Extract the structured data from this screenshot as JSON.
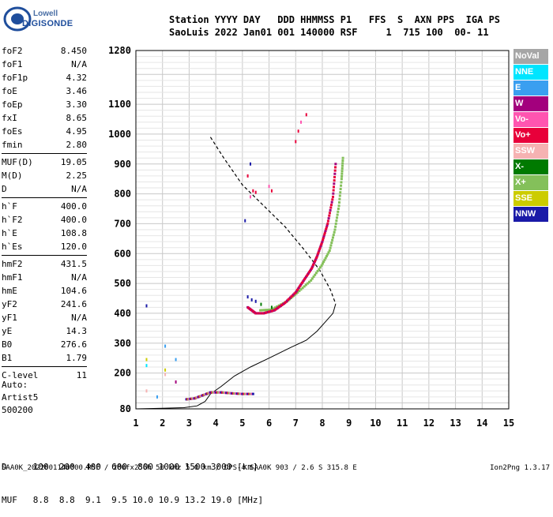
{
  "logo": {
    "line1": "Lowell",
    "line2": "DIGISONDE"
  },
  "header": {
    "line1": "Station YYYY DAY   DDD HHMMSS P1   FFS  S  AXN PPS  IGA PS",
    "line2": "SaoLuis 2022 Jan01 001 140000 RSF     1  715 100  00- 11"
  },
  "params": [
    [
      {
        "n": "foF2",
        "v": "8.450"
      },
      {
        "n": "foF1",
        "v": "N/A"
      },
      {
        "n": "foF1p",
        "v": "4.32"
      },
      {
        "n": "foE",
        "v": "3.46"
      },
      {
        "n": "foEp",
        "v": "3.30"
      },
      {
        "n": "fxI",
        "v": "8.65"
      },
      {
        "n": "foEs",
        "v": "4.95"
      },
      {
        "n": "fmin",
        "v": "2.80"
      }
    ],
    [
      {
        "n": "MUF(D)",
        "v": "19.05"
      },
      {
        "n": "M(D)",
        "v": "2.25"
      },
      {
        "n": "D",
        "v": "N/A"
      }
    ],
    [
      {
        "n": "h`F",
        "v": "400.0"
      },
      {
        "n": "h`F2",
        "v": "400.0"
      },
      {
        "n": "h`E",
        "v": "108.8"
      },
      {
        "n": "h`Es",
        "v": "120.0"
      }
    ],
    [
      {
        "n": "hmF2",
        "v": "431.5"
      },
      {
        "n": "hmF1",
        "v": "N/A"
      },
      {
        "n": "hmE",
        "v": "104.6"
      },
      {
        "n": "yF2",
        "v": "241.6"
      },
      {
        "n": "yF1",
        "v": "N/A"
      },
      {
        "n": "yE",
        "v": "14.3"
      },
      {
        "n": "B0",
        "v": "276.6"
      },
      {
        "n": "B1",
        "v": "1.79"
      }
    ],
    [
      {
        "n": "C-level",
        "v": "11"
      }
    ]
  ],
  "auto": {
    "line1": "Auto:",
    "line2": "Artist5",
    "line3": "500200"
  },
  "legend": [
    {
      "label": "NoVal",
      "color": "#a6a6a6"
    },
    {
      "label": "NNE",
      "color": "#00e5ff"
    },
    {
      "label": "E",
      "color": "#3a9ff0"
    },
    {
      "label": "W",
      "color": "#a3007d"
    },
    {
      "label": "Vo-",
      "color": "#ff55b0"
    },
    {
      "label": "Vo+",
      "color": "#e8003a"
    },
    {
      "label": "SSW",
      "color": "#f6b2b2"
    },
    {
      "label": "X-",
      "color": "#007a00"
    },
    {
      "label": "X+",
      "color": "#84c05a"
    },
    {
      "label": "SSE",
      "color": "#cccc00"
    },
    {
      "label": "NNW",
      "color": "#1a1aa8"
    }
  ],
  "muf_table": {
    "line1": "D     100  200  400  600  800 1000 1500 3000 [km]",
    "line2": "MUF   8.8  8.8  9.1  9.5 10.0 10.9 13.2 19.0 [MHz]"
  },
  "footer": {
    "left": "SAA0K_2022001140000.RSF / 280fx256h 50 kHz 5.0 km / DPS-4 SAA0K 903 / 2.6 S 315.8 E",
    "right": "Ion2Png 1.3.17"
  },
  "chart_data": {
    "type": "scatter",
    "xlim": [
      1,
      15
    ],
    "ylim": [
      80,
      1280
    ],
    "x_ticks": [
      1,
      2,
      3,
      4,
      5,
      6,
      7,
      8,
      9,
      10,
      11,
      12,
      13,
      14,
      15
    ],
    "y_ticks": [
      80,
      200,
      300,
      400,
      500,
      600,
      700,
      800,
      900,
      1000,
      1100,
      1280
    ],
    "grid": true,
    "legend_position": "right",
    "profile_solid": [
      [
        1,
        80
      ],
      [
        2,
        82
      ],
      [
        2.8,
        84
      ],
      [
        3.3,
        90
      ],
      [
        3.6,
        105
      ],
      [
        3.8,
        130
      ],
      [
        4.2,
        155
      ],
      [
        4.7,
        190
      ],
      [
        5.3,
        220
      ],
      [
        6,
        250
      ],
      [
        6.8,
        285
      ],
      [
        7.4,
        310
      ],
      [
        7.8,
        340
      ],
      [
        8.1,
        370
      ],
      [
        8.4,
        400
      ],
      [
        8.5,
        431.5
      ]
    ],
    "profile_dashed": [
      [
        3.8,
        990
      ],
      [
        4.3,
        920
      ],
      [
        5,
        830
      ],
      [
        5.8,
        760
      ],
      [
        6.6,
        690
      ],
      [
        7.3,
        615
      ],
      [
        7.9,
        545
      ],
      [
        8.3,
        480
      ],
      [
        8.5,
        431.5
      ]
    ],
    "o_trace": [
      [
        5.2,
        420
      ],
      [
        5.5,
        400
      ],
      [
        5.8,
        400
      ],
      [
        6.2,
        410
      ],
      [
        6.6,
        435
      ],
      [
        7,
        470
      ],
      [
        7.3,
        510
      ],
      [
        7.6,
        550
      ],
      [
        7.8,
        590
      ],
      [
        8,
        640
      ],
      [
        8.2,
        700
      ],
      [
        8.4,
        790
      ],
      [
        8.5,
        900
      ]
    ],
    "x_trace": [
      [
        5.6,
        410
      ],
      [
        6,
        412
      ],
      [
        6.6,
        440
      ],
      [
        7,
        470
      ],
      [
        7.5,
        510
      ],
      [
        7.9,
        560
      ],
      [
        8.2,
        610
      ],
      [
        8.4,
        680
      ],
      [
        8.55,
        760
      ],
      [
        8.65,
        850
      ],
      [
        8.7,
        920
      ]
    ],
    "es_trace": [
      [
        2.9,
        112
      ],
      [
        3.2,
        115
      ],
      [
        3.5,
        125
      ],
      [
        3.8,
        135
      ],
      [
        4.2,
        135
      ],
      [
        4.6,
        132
      ],
      [
        5,
        130
      ],
      [
        5.4,
        130
      ]
    ],
    "scatter_points": [
      {
        "x": 5.3,
        "y": 900,
        "c": "#1a1aa8"
      },
      {
        "x": 5.2,
        "y": 860,
        "c": "#e8003a"
      },
      {
        "x": 5.4,
        "y": 810,
        "c": "#e8003a"
      },
      {
        "x": 5.5,
        "y": 805,
        "c": "#e8003a"
      },
      {
        "x": 5.3,
        "y": 790,
        "c": "#ff55b0"
      },
      {
        "x": 6,
        "y": 825,
        "c": "#ff55b0"
      },
      {
        "x": 6.1,
        "y": 810,
        "c": "#e8003a"
      },
      {
        "x": 5.1,
        "y": 710,
        "c": "#1a1aa8"
      },
      {
        "x": 7,
        "y": 975,
        "c": "#e8003a"
      },
      {
        "x": 7.1,
        "y": 1010,
        "c": "#e8003a"
      },
      {
        "x": 7.2,
        "y": 1040,
        "c": "#ff55b0"
      },
      {
        "x": 7.4,
        "y": 1065,
        "c": "#e8003a"
      },
      {
        "x": 1.4,
        "y": 425,
        "c": "#1a1aa8"
      },
      {
        "x": 1.4,
        "y": 245,
        "c": "#cccc00"
      },
      {
        "x": 1.4,
        "y": 225,
        "c": "#00e5ff"
      },
      {
        "x": 2.1,
        "y": 290,
        "c": "#3a9ff0"
      },
      {
        "x": 2.5,
        "y": 245,
        "c": "#3a9ff0"
      },
      {
        "x": 2.1,
        "y": 210,
        "c": "#cccc00"
      },
      {
        "x": 1.4,
        "y": 140,
        "c": "#f6b2b2"
      },
      {
        "x": 1.8,
        "y": 120,
        "c": "#3a9ff0"
      },
      {
        "x": 2.5,
        "y": 170,
        "c": "#a3007d"
      },
      {
        "x": 2.1,
        "y": 195,
        "c": "#f6b2b2"
      },
      {
        "x": 5.2,
        "y": 455,
        "c": "#1a1aa8"
      },
      {
        "x": 5.35,
        "y": 445,
        "c": "#1a1aa8"
      },
      {
        "x": 5.5,
        "y": 440,
        "c": "#1a1aa8"
      },
      {
        "x": 5.7,
        "y": 430,
        "c": "#007a00"
      },
      {
        "x": 6.1,
        "y": 420,
        "c": "#007a00"
      }
    ]
  }
}
